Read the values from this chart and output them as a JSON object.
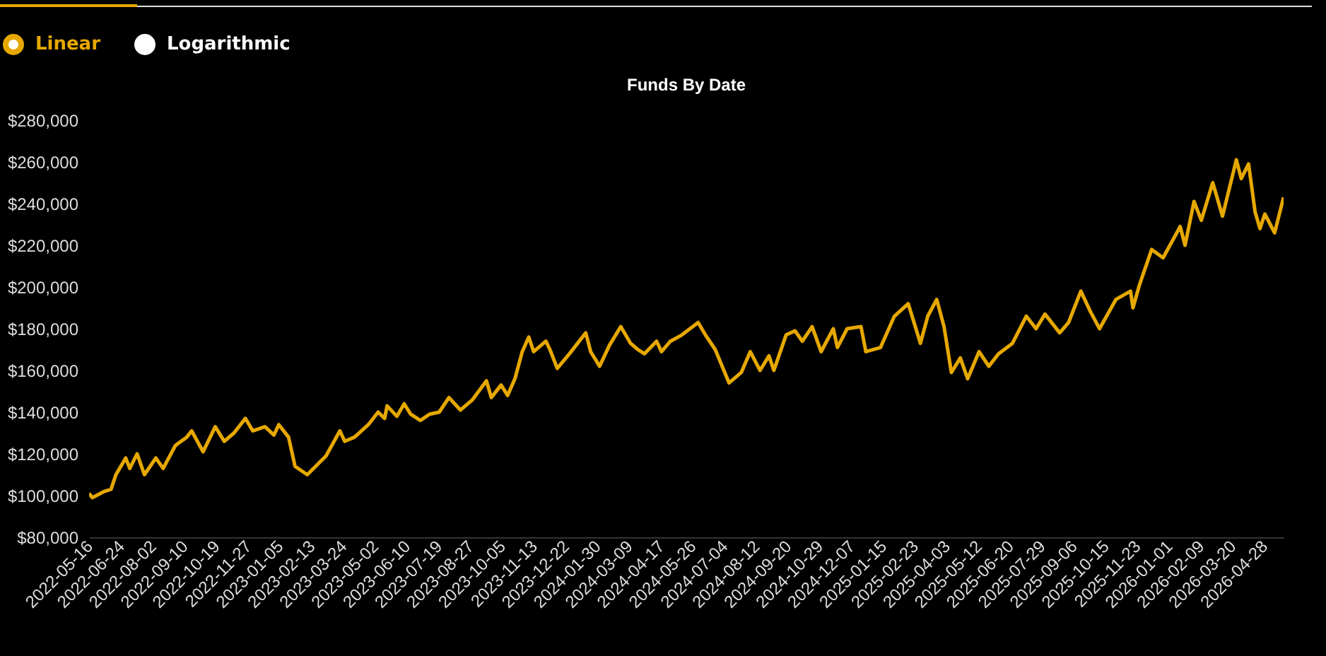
{
  "chart_data": {
    "type": "line",
    "title": "Funds By Date",
    "annotations": [
      "Linear",
      "Logarithmic"
    ],
    "x": [
      "2022-05-16",
      "2022-05-20",
      "2022-06-04",
      "2022-06-12",
      "2022-06-18",
      "2022-06-30",
      "2022-07-05",
      "2022-07-14",
      "2022-07-23",
      "2022-08-06",
      "2022-08-15",
      "2022-08-30",
      "2022-09-13",
      "2022-09-19",
      "2022-10-03",
      "2022-10-18",
      "2022-10-29",
      "2022-11-10",
      "2022-11-24",
      "2022-12-03",
      "2022-12-18",
      "2022-12-29",
      "2023-01-04",
      "2023-01-16",
      "2023-01-24",
      "2023-02-08",
      "2023-03-03",
      "2023-03-20",
      "2023-03-26",
      "2023-04-07",
      "2023-04-24",
      "2023-05-06",
      "2023-05-14",
      "2023-05-17",
      "2023-05-29",
      "2023-06-07",
      "2023-06-15",
      "2023-06-27",
      "2023-07-08",
      "2023-07-20",
      "2023-08-01",
      "2023-08-15",
      "2023-08-30",
      "2023-09-16",
      "2023-09-22",
      "2023-10-04",
      "2023-10-12",
      "2023-10-21",
      "2023-10-30",
      "2023-11-07",
      "2023-11-13",
      "2023-11-28",
      "2023-12-03",
      "2023-12-12",
      "2023-12-27",
      "2024-01-16",
      "2024-01-22",
      "2024-02-02",
      "2024-02-14",
      "2024-02-28",
      "2024-03-11",
      "2024-03-20",
      "2024-03-28",
      "2024-04-12",
      "2024-04-18",
      "2024-04-29",
      "2024-05-13",
      "2024-06-02",
      "2024-06-11",
      "2024-06-23",
      "2024-07-10",
      "2024-07-25",
      "2024-08-05",
      "2024-08-17",
      "2024-08-28",
      "2024-09-03",
      "2024-09-18",
      "2024-09-29",
      "2024-10-08",
      "2024-10-20",
      "2024-10-31",
      "2024-11-15",
      "2024-11-20",
      "2024-12-02",
      "2024-12-19",
      "2024-12-25",
      "2025-01-12",
      "2025-01-29",
      "2025-02-15",
      "2025-03-02",
      "2025-03-11",
      "2025-03-22",
      "2025-03-31",
      "2025-04-09",
      "2025-04-20",
      "2025-04-29",
      "2025-05-13",
      "2025-05-25",
      "2025-06-06",
      "2025-06-23",
      "2025-07-10",
      "2025-07-22",
      "2025-08-02",
      "2025-08-20",
      "2025-08-31",
      "2025-09-15",
      "2025-09-27",
      "2025-10-08",
      "2025-10-28",
      "2025-11-15",
      "2025-11-18",
      "2025-11-26",
      "2025-12-11",
      "2025-12-25",
      "2026-01-15",
      "2026-01-21",
      "2026-02-01",
      "2026-02-10",
      "2026-02-24",
      "2026-03-08",
      "2026-03-25",
      "2026-03-31",
      "2026-04-09",
      "2026-04-17",
      "2026-04-23",
      "2026-04-29",
      "2026-05-11",
      "2026-05-22"
    ],
    "series": [
      {
        "color": "#e6a800",
        "values": [
          101000,
          99000,
          102000,
          103000,
          110000,
          118000,
          113000,
          120000,
          110000,
          118000,
          113000,
          124000,
          128000,
          131000,
          121000,
          133000,
          126000,
          130000,
          137000,
          131000,
          133000,
          129000,
          134000,
          128000,
          114000,
          110000,
          119000,
          131000,
          126000,
          128000,
          134000,
          140000,
          137000,
          143000,
          138000,
          144000,
          139000,
          136000,
          139000,
          140000,
          147000,
          141000,
          146000,
          155000,
          147000,
          153000,
          148000,
          156000,
          169000,
          176000,
          169000,
          174000,
          170000,
          161000,
          168000,
          178000,
          169000,
          162000,
          172000,
          181000,
          173000,
          170000,
          168000,
          174000,
          169000,
          174000,
          177000,
          183000,
          177000,
          170000,
          154000,
          159000,
          169000,
          160000,
          167000,
          160000,
          177000,
          179000,
          174000,
          181000,
          169000,
          180000,
          171000,
          180000,
          181000,
          169000,
          171000,
          186000,
          192000,
          173000,
          186000,
          194000,
          181000,
          159000,
          166000,
          156000,
          169000,
          162000,
          168000,
          173000,
          186000,
          180000,
          187000,
          178000,
          183000,
          198000,
          188000,
          180000,
          194000,
          198000,
          190000,
          201000,
          218000,
          214000,
          229000,
          220000,
          241000,
          232000,
          250000,
          234000,
          261000,
          252000,
          259000,
          236000,
          228000,
          235000,
          226000,
          243000
        ]
      }
    ],
    "xticks": [
      "2022-05-16",
      "2022-06-24",
      "2022-08-02",
      "2022-09-10",
      "2022-10-19",
      "2022-11-27",
      "2023-01-05",
      "2023-02-13",
      "2023-03-24",
      "2023-05-02",
      "2023-06-10",
      "2023-07-19",
      "2023-08-27",
      "2023-10-05",
      "2023-11-13",
      "2023-12-22",
      "2024-01-30",
      "2024-03-09",
      "2024-04-17",
      "2024-05-26",
      "2024-07-04",
      "2024-08-12",
      "2024-09-20",
      "2024-10-29",
      "2024-12-07",
      "2025-01-15",
      "2025-02-23",
      "2025-04-03",
      "2025-05-12",
      "2025-06-20",
      "2025-07-29",
      "2025-09-06",
      "2025-10-15",
      "2025-11-23",
      "2026-01-01",
      "2026-02-09",
      "2026-03-20",
      "2026-04-28"
    ],
    "xlim": [
      "2022-05-16",
      "2026-05-22"
    ],
    "ylim": [
      80000,
      280000
    ],
    "yticks": [
      {
        "value": 80000,
        "label": "$80,000"
      },
      {
        "value": 100000,
        "label": "$100,000"
      },
      {
        "value": 120000,
        "label": "$120,000"
      },
      {
        "value": 140000,
        "label": "$140,000"
      },
      {
        "value": 160000,
        "label": "$160,000"
      },
      {
        "value": 180000,
        "label": "$180,000"
      },
      {
        "value": 200000,
        "label": "$200,000"
      },
      {
        "value": 220000,
        "label": "$220,000"
      },
      {
        "value": 240000,
        "label": "$240,000"
      },
      {
        "value": 260000,
        "label": "$260,000"
      },
      {
        "value": 280000,
        "label": "$280,000"
      }
    ],
    "grid": false,
    "marker": "none",
    "line_style": "solid"
  }
}
